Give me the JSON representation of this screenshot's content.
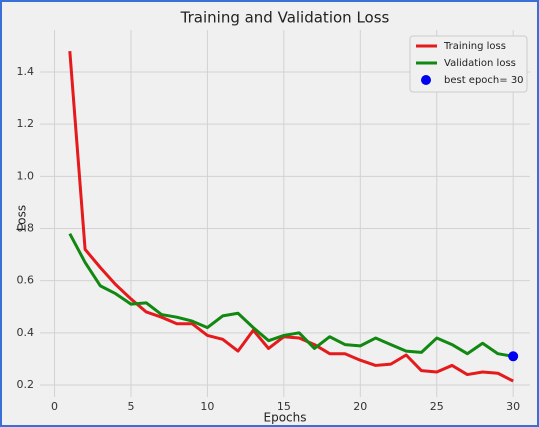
{
  "chart_data": {
    "type": "line",
    "title": "Training and Validation Loss",
    "x_label": "Epochs",
    "y_label": "Loss",
    "x": [
      1,
      2,
      3,
      4,
      5,
      6,
      7,
      8,
      9,
      10,
      11,
      12,
      13,
      14,
      15,
      16,
      17,
      18,
      19,
      20,
      21,
      22,
      23,
      24,
      25,
      26,
      27,
      28,
      29,
      30
    ],
    "series": [
      {
        "name": "Training loss",
        "color": "#e41a1c",
        "values": [
          1.48,
          0.72,
          0.65,
          0.585,
          0.53,
          0.48,
          0.46,
          0.435,
          0.435,
          0.39,
          0.375,
          0.33,
          0.41,
          0.34,
          0.385,
          0.38,
          0.355,
          0.32,
          0.32,
          0.295,
          0.275,
          0.28,
          0.315,
          0.255,
          0.25,
          0.275,
          0.24,
          0.25,
          0.245,
          0.215
        ]
      },
      {
        "name": "Validation loss",
        "color": "#118811",
        "values": [
          0.78,
          0.67,
          0.58,
          0.55,
          0.51,
          0.515,
          0.47,
          0.46,
          0.445,
          0.42,
          0.465,
          0.475,
          0.42,
          0.37,
          0.39,
          0.4,
          0.34,
          0.385,
          0.355,
          0.35,
          0.38,
          0.355,
          0.33,
          0.325,
          0.38,
          0.355,
          0.32,
          0.36,
          0.32,
          0.31
        ]
      },
      {
        "name": "best epoch= 30",
        "type": "scatter",
        "color": "#0000ee",
        "x": [
          30
        ],
        "values": [
          0.31
        ]
      }
    ],
    "xlim": [
      -0.95,
      31.1
    ],
    "ylim": [
      0.154,
      1.561
    ],
    "xticks": [
      0,
      5,
      10,
      15,
      20,
      25,
      30
    ],
    "yticks": [
      0.2,
      0.4,
      0.6,
      0.8,
      {
        "value": 1,
        "label": "1.0"
      },
      1.2,
      1.4
    ],
    "grid": true,
    "legend": "upper right"
  }
}
